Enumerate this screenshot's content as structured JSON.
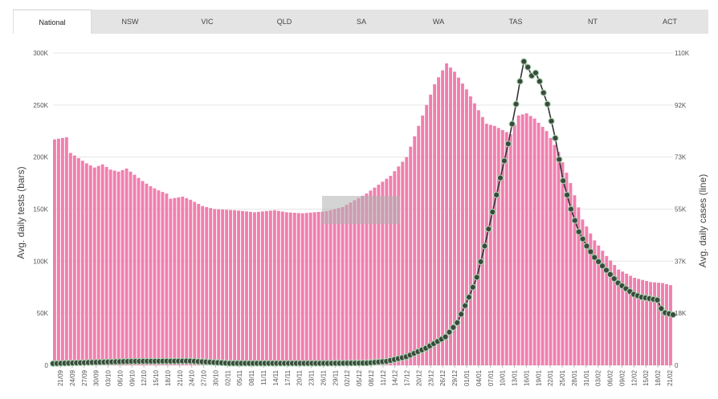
{
  "tabs": [
    {
      "label": "National",
      "active": true
    },
    {
      "label": "NSW"
    },
    {
      "label": "VIC"
    },
    {
      "label": "QLD"
    },
    {
      "label": "SA"
    },
    {
      "label": "WA"
    },
    {
      "label": "TAS"
    },
    {
      "label": "NT"
    },
    {
      "label": "ACT"
    }
  ],
  "chart_data": {
    "type": "bar",
    "ylabel_left": "Avg. daily tests (bars)",
    "ylabel_right": "Avg. daily cases (line)",
    "y_left": {
      "min": 0,
      "max": 300000,
      "ticks": [
        "0",
        "50K",
        "100K",
        "150K",
        "200K",
        "250K",
        "300K"
      ]
    },
    "y_right": {
      "min": 0,
      "max": 110000,
      "ticks": [
        "0",
        "18K",
        "37K",
        "55K",
        "73K",
        "92K",
        "110K"
      ]
    },
    "x_tick_labels": [
      "21/09",
      "24/09",
      "27/09",
      "30/09",
      "03/10",
      "06/10",
      "09/10",
      "12/10",
      "15/10",
      "18/10",
      "21/10",
      "24/10",
      "27/10",
      "30/10",
      "02/11",
      "05/11",
      "08/11",
      "11/11",
      "14/11",
      "17/11",
      "20/11",
      "23/11",
      "26/11",
      "29/11",
      "02/12",
      "05/12",
      "08/12",
      "11/12",
      "14/12",
      "17/12",
      "20/12",
      "23/12",
      "26/12",
      "29/12",
      "01/01",
      "04/01",
      "07/01",
      "10/01",
      "13/01",
      "16/01",
      "19/01",
      "22/01",
      "25/01",
      "28/01",
      "31/01",
      "03/02",
      "06/02",
      "09/02",
      "12/02",
      "15/02",
      "18/02",
      "21/02"
    ],
    "tests_anchors": [
      [
        0,
        217000
      ],
      [
        3,
        219000
      ],
      [
        4,
        204000
      ],
      [
        6,
        199000
      ],
      [
        8,
        194000
      ],
      [
        10,
        190000
      ],
      [
        12,
        193000
      ],
      [
        14,
        188000
      ],
      [
        16,
        186000
      ],
      [
        18,
        189000
      ],
      [
        20,
        183000
      ],
      [
        22,
        177000
      ],
      [
        24,
        172000
      ],
      [
        26,
        168000
      ],
      [
        28,
        165000
      ],
      [
        29,
        160000
      ],
      [
        32,
        162000
      ],
      [
        34,
        159000
      ],
      [
        37,
        153000
      ],
      [
        40,
        150000
      ],
      [
        45,
        149000
      ],
      [
        50,
        147000
      ],
      [
        55,
        149000
      ],
      [
        58,
        147000
      ],
      [
        62,
        146000
      ],
      [
        68,
        148000
      ],
      [
        72,
        152000
      ],
      [
        78,
        165000
      ],
      [
        84,
        182000
      ],
      [
        88,
        200000
      ],
      [
        92,
        240000
      ],
      [
        95,
        270000
      ],
      [
        98,
        290000
      ],
      [
        100,
        282000
      ],
      [
        103,
        265000
      ],
      [
        106,
        245000
      ],
      [
        108,
        232000
      ],
      [
        110,
        230000
      ],
      [
        112,
        226000
      ],
      [
        114,
        222000
      ],
      [
        116,
        240000
      ],
      [
        118,
        242000
      ],
      [
        120,
        237000
      ],
      [
        123,
        225000
      ],
      [
        126,
        205000
      ],
      [
        129,
        175000
      ],
      [
        132,
        140000
      ],
      [
        135,
        120000
      ],
      [
        138,
        105000
      ],
      [
        141,
        92000
      ],
      [
        145,
        84000
      ],
      [
        149,
        80000
      ],
      [
        152,
        79000
      ],
      [
        154,
        77000
      ]
    ],
    "cases_anchors": [
      [
        0,
        600
      ],
      [
        20,
        1400
      ],
      [
        35,
        1500
      ],
      [
        45,
        700
      ],
      [
        70,
        700
      ],
      [
        80,
        800
      ],
      [
        85,
        1400
      ],
      [
        90,
        3000
      ],
      [
        95,
        6000
      ],
      [
        100,
        10000
      ],
      [
        103,
        15000
      ],
      [
        106,
        24000
      ],
      [
        108,
        31000
      ],
      [
        110,
        42000
      ],
      [
        112,
        54000
      ],
      [
        114,
        66000
      ],
      [
        116,
        78000
      ],
      [
        118,
        92000
      ],
      [
        119,
        100000
      ],
      [
        120,
        107000
      ],
      [
        121,
        105000
      ],
      [
        122,
        102000
      ],
      [
        123,
        103000
      ],
      [
        124,
        100000
      ],
      [
        126,
        92000
      ],
      [
        128,
        80000
      ],
      [
        130,
        65000
      ],
      [
        132,
        55000
      ],
      [
        134,
        47000
      ],
      [
        136,
        42000
      ],
      [
        138,
        38000
      ],
      [
        140,
        35000
      ],
      [
        142,
        32000
      ],
      [
        144,
        29000
      ],
      [
        146,
        27000
      ],
      [
        148,
        25000
      ],
      [
        150,
        24000
      ],
      [
        152,
        23500
      ],
      [
        154,
        23000
      ],
      [
        155,
        20000
      ],
      [
        156,
        18500
      ],
      [
        158,
        17800
      ]
    ],
    "n_bars": 155,
    "n_points": 159,
    "highlight_band": true
  }
}
